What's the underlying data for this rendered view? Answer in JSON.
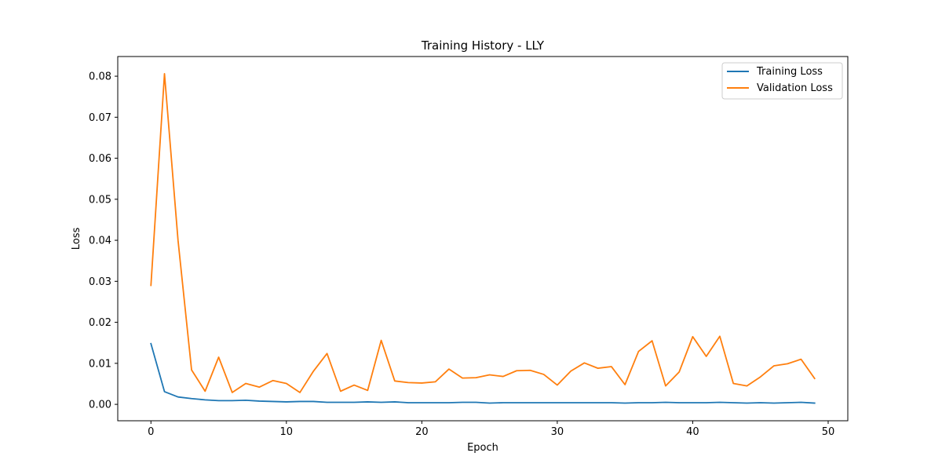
{
  "chart_data": {
    "type": "line",
    "title": "Training History - LLY",
    "xlabel": "Epoch",
    "ylabel": "Loss",
    "xlim": [
      -2.45,
      51.45
    ],
    "ylim": [
      -0.004,
      0.0848
    ],
    "xticks": [
      0,
      10,
      20,
      30,
      40,
      50
    ],
    "xtick_labels": [
      "0",
      "10",
      "20",
      "30",
      "40",
      "50"
    ],
    "yticks": [
      0.0,
      0.01,
      0.02,
      0.03,
      0.04,
      0.05,
      0.06,
      0.07,
      0.08
    ],
    "ytick_labels": [
      "0.00",
      "0.01",
      "0.02",
      "0.03",
      "0.04",
      "0.05",
      "0.06",
      "0.07",
      "0.08"
    ],
    "grid": false,
    "legend_position": "upper right",
    "x": [
      0,
      1,
      2,
      3,
      4,
      5,
      6,
      7,
      8,
      9,
      10,
      11,
      12,
      13,
      14,
      15,
      16,
      17,
      18,
      19,
      20,
      21,
      22,
      23,
      24,
      25,
      26,
      27,
      28,
      29,
      30,
      31,
      32,
      33,
      34,
      35,
      36,
      37,
      38,
      39,
      40,
      41,
      42,
      43,
      44,
      45,
      46,
      47,
      48,
      49
    ],
    "series": [
      {
        "name": "Training Loss",
        "color": "#1f77b4",
        "values": [
          0.0148,
          0.0031,
          0.0018,
          0.0014,
          0.0011,
          0.0009,
          0.0009,
          0.001,
          0.0008,
          0.0007,
          0.0006,
          0.0007,
          0.0007,
          0.0005,
          0.0005,
          0.0005,
          0.0006,
          0.0005,
          0.0006,
          0.0004,
          0.0004,
          0.0004,
          0.0004,
          0.0005,
          0.0005,
          0.0003,
          0.0004,
          0.0004,
          0.0004,
          0.0004,
          0.0004,
          0.0004,
          0.0004,
          0.0004,
          0.0004,
          0.0003,
          0.0004,
          0.0004,
          0.0005,
          0.0004,
          0.0004,
          0.0004,
          0.0005,
          0.0004,
          0.0003,
          0.0004,
          0.0003,
          0.0004,
          0.0005,
          0.0003
        ]
      },
      {
        "name": "Validation Loss",
        "color": "#ff7f0e",
        "values": [
          0.029,
          0.0806,
          0.04,
          0.0084,
          0.0032,
          0.0115,
          0.0029,
          0.0051,
          0.0042,
          0.0058,
          0.0051,
          0.0029,
          0.0081,
          0.0124,
          0.0032,
          0.0047,
          0.0034,
          0.0156,
          0.0057,
          0.0053,
          0.0052,
          0.0055,
          0.0086,
          0.0064,
          0.0065,
          0.0072,
          0.0068,
          0.0082,
          0.0083,
          0.0073,
          0.0047,
          0.0081,
          0.0101,
          0.0088,
          0.0092,
          0.0048,
          0.0129,
          0.0155,
          0.0045,
          0.0079,
          0.0165,
          0.0117,
          0.0166,
          0.0051,
          0.0045,
          0.0067,
          0.0094,
          0.0099,
          0.011,
          0.0063
        ]
      }
    ]
  }
}
